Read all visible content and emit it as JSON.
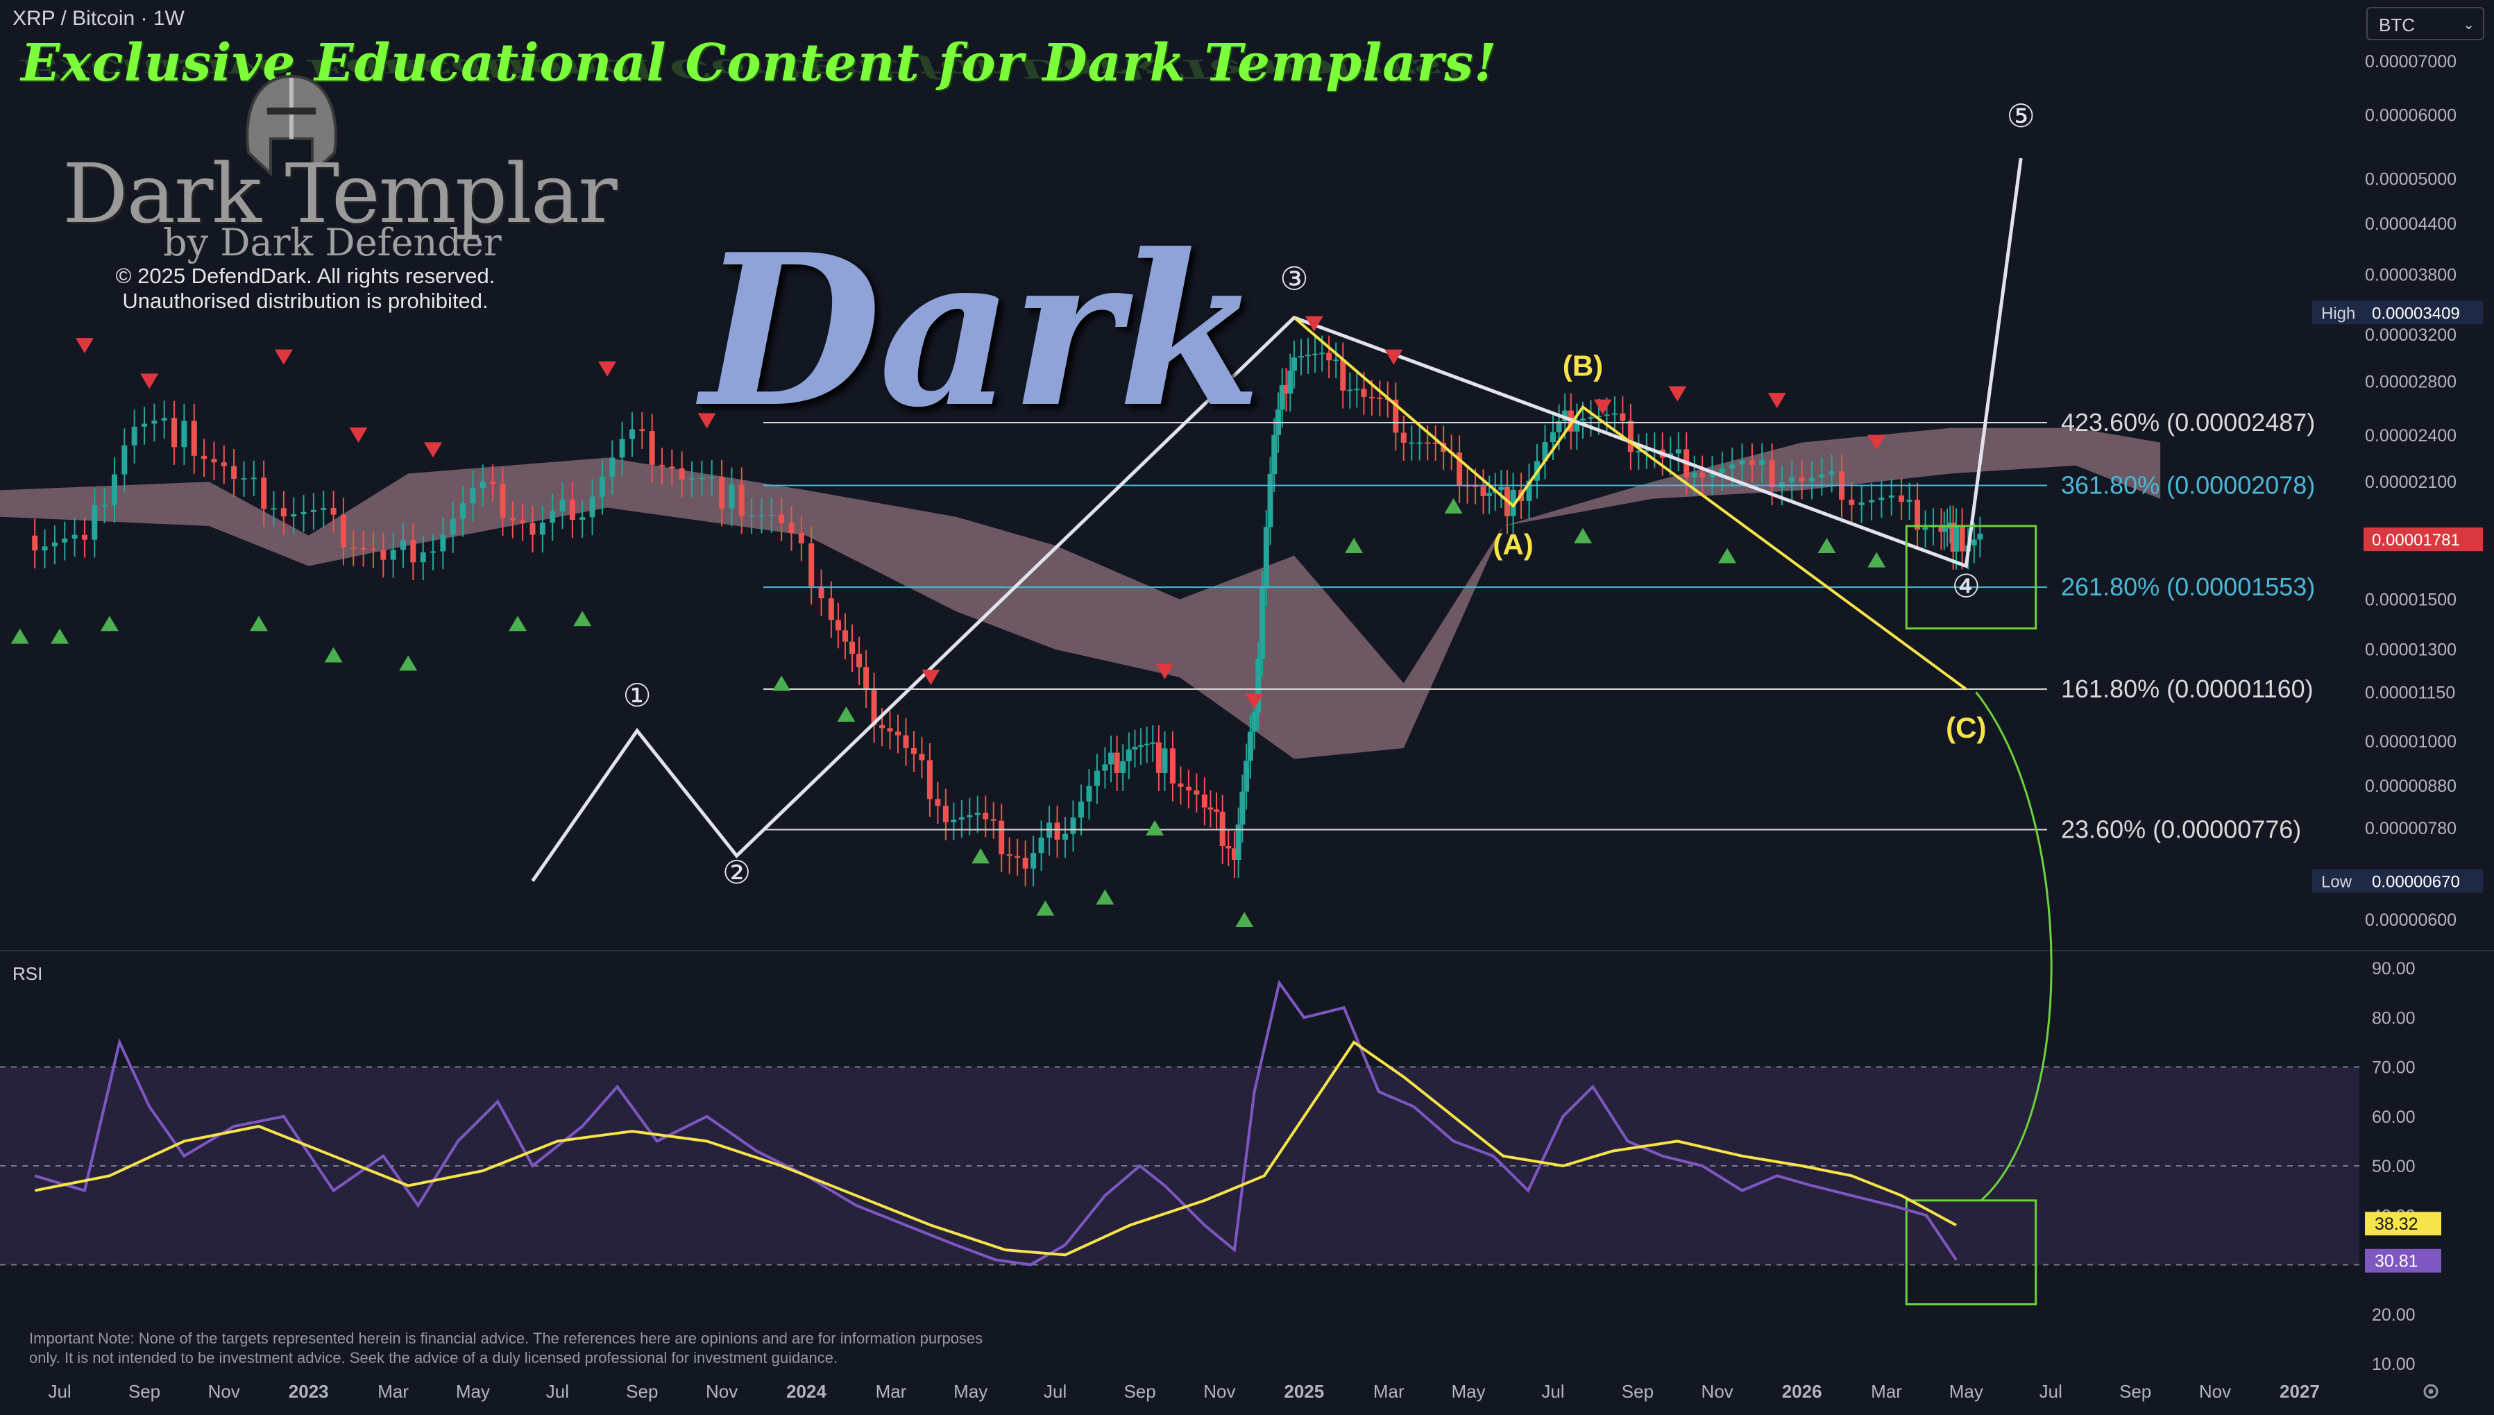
{
  "header": {
    "symbol_title": "XRP / Bitcoin · 1W",
    "currency": "BTC"
  },
  "overlay": {
    "promo_text": "Exclusive Educational Content for Dark Templars!",
    "brand_name": "Dark Templar",
    "brand_sub": "by Dark Defender",
    "copyright_line1": "© 2025 DefendDark. All rights reserved.",
    "copyright_line2": "Unauthorised distribution is prohibited.",
    "watermark": "Dark",
    "disclaimer": "Important Note: None of the targets represented herein is financial advice. The references here are opinions and are for information purposes only. It is not intended to be investment advice. Seek the advice of a duly licensed professional for investment guidance."
  },
  "colors": {
    "background": "#131722",
    "candle_up": "#26a69a",
    "candle_down": "#ef5350",
    "wave_line": "#e0e3eb",
    "correction_line": "#f7e34a",
    "fib_cyan": "#4bb8d6",
    "rsi_line": "#7e57c2",
    "rsi_ma": "#f7e34a",
    "target_box": "#6bd23a",
    "cloud": "#b88e9a",
    "brand_green": "#7cff3a"
  },
  "icons": {
    "settings": "gear-icon",
    "currency_dropdown": "chevron-down-icon",
    "logo": "helmet-icon"
  },
  "chart_data": [
    {
      "type": "candlestick",
      "title": "XRP / Bitcoin · 1W",
      "x_axis_ticks": [
        "Jul",
        "Sep",
        "Nov",
        "2023",
        "Mar",
        "May",
        "Jul",
        "Sep",
        "Nov",
        "2024",
        "Mar",
        "May",
        "Jul",
        "Sep",
        "Nov",
        "2025",
        "Mar",
        "May",
        "Jul",
        "Sep",
        "Nov",
        "2026",
        "Mar",
        "May",
        "Jul",
        "Sep",
        "Nov",
        "2027"
      ],
      "y_axis_ticks": [
        "0.00007000",
        "0.00006000",
        "0.00005000",
        "0.00004400",
        "0.00003800",
        "0.00003200",
        "0.00002800",
        "0.00002400",
        "0.00002100",
        "0.00001800",
        "0.00001500",
        "0.00001300",
        "0.00001150",
        "0.00001000",
        "0.00000880",
        "0.00000780",
        "0.00000670",
        "0.00000600"
      ],
      "y_scale": "log",
      "ylim": [
        5.8e-06,
        7.4e-06
      ],
      "price_badges": [
        {
          "label": "High",
          "value": "0.00003409"
        },
        {
          "label": "",
          "value": "0.00001781"
        },
        {
          "label": "Low",
          "value": "0.00000670"
        }
      ],
      "fib_levels": [
        {
          "label": "423.60% (0.00002487)",
          "value": 2.487e-05
        },
        {
          "label": "361.80% (0.00002078)",
          "value": 2.078e-05
        },
        {
          "label": "261.80% (0.00001553)",
          "value": 1.553e-05
        },
        {
          "label": "161.80% (0.00001160)",
          "value": 1.16e-05
        },
        {
          "label": "23.60% (0.00000776)",
          "value": 7.76e-06
        }
      ],
      "wave_labels": [
        "①",
        "②",
        "③",
        "④",
        "⑤"
      ],
      "correction_labels": [
        "(A)",
        "(B)",
        "(C)"
      ],
      "wave_path": [
        {
          "t": 2023.45,
          "v": 6.7e-06
        },
        {
          "t": 2023.66,
          "v": 1.03e-05
        },
        {
          "t": 2023.86,
          "v": 7.2e-06
        },
        {
          "t": 2024.98,
          "v": 3.36e-05
        },
        {
          "t": 2026.33,
          "v": 1.65e-05
        },
        {
          "t": 2026.44,
          "v": 5.3e-05
        }
      ],
      "correction_path": [
        {
          "t": 2024.98,
          "v": 3.36e-05
        },
        {
          "t": 2025.42,
          "v": 1.96e-05
        },
        {
          "t": 2025.56,
          "v": 2.6e-05
        },
        {
          "t": 2026.33,
          "v": 1.16e-05
        }
      ],
      "series": [
        {
          "name": "XRP/BTC close",
          "points": [
            [
              2022.45,
              1.8e-05
            ],
            [
              2022.55,
              1.75e-05
            ],
            [
              2022.65,
              2.5e-05
            ],
            [
              2022.75,
              2.4e-05
            ],
            [
              2022.85,
              2.1e-05
            ],
            [
              2022.95,
              1.95e-05
            ],
            [
              2023.05,
              1.85e-05
            ],
            [
              2023.15,
              1.68e-05
            ],
            [
              2023.25,
              1.78e-05
            ],
            [
              2023.35,
              2.05e-05
            ],
            [
              2023.45,
              1.82e-05
            ],
            [
              2023.55,
              1.98e-05
            ],
            [
              2023.65,
              2.4e-05
            ],
            [
              2023.75,
              2.15e-05
            ],
            [
              2023.85,
              2e-05
            ],
            [
              2023.95,
              1.85e-05
            ],
            [
              2024.05,
              1.45e-05
            ],
            [
              2024.12,
              1.12e-05
            ],
            [
              2024.2,
              9.8e-06
            ],
            [
              2024.28,
              8.2e-06
            ],
            [
              2024.36,
              7.8e-06
            ],
            [
              2024.44,
              7e-06
            ],
            [
              2024.52,
              8e-06
            ],
            [
              2024.6,
              9.2e-06
            ],
            [
              2024.66,
              1e-05
            ],
            [
              2024.72,
              9.4e-06
            ],
            [
              2024.8,
              8.2e-06
            ],
            [
              2024.86,
              7.3e-06
            ],
            [
              2024.9,
              1.05e-05
            ],
            [
              2024.94,
              2.4e-05
            ],
            [
              2024.98,
              3.1e-05
            ],
            [
              2025.05,
              2.9e-05
            ],
            [
              2025.12,
              2.7e-05
            ],
            [
              2025.2,
              2.45e-05
            ],
            [
              2025.28,
              2.25e-05
            ],
            [
              2025.36,
              2.05e-05
            ],
            [
              2025.42,
              1.97e-05
            ],
            [
              2025.5,
              2.4e-05
            ],
            [
              2025.56,
              2.58e-05
            ],
            [
              2025.64,
              2.42e-05
            ],
            [
              2025.72,
              2.25e-05
            ],
            [
              2025.8,
              2.2e-05
            ],
            [
              2025.9,
              2.15e-05
            ],
            [
              2026.0,
              2.12e-05
            ],
            [
              2026.1,
              2.05e-05
            ],
            [
              2026.2,
              1.95e-05
            ],
            [
              2026.28,
              1.85e-05
            ],
            [
              2026.31,
              1.78e-05
            ]
          ]
        }
      ]
    },
    {
      "type": "line",
      "title": "RSI",
      "y_axis_ticks": [
        "90.00",
        "80.00",
        "70.00",
        "60.00",
        "50.00",
        "40.00",
        "30.00",
        "20.00",
        "10.00"
      ],
      "ylim": [
        10,
        90
      ],
      "bands": [
        30,
        50,
        70
      ],
      "value_badges": [
        {
          "value": "38.32"
        },
        {
          "value": "30.81"
        }
      ],
      "series": [
        {
          "name": "RSI",
          "points": [
            [
              2022.45,
              48
            ],
            [
              2022.55,
              45
            ],
            [
              2022.62,
              75
            ],
            [
              2022.68,
              62
            ],
            [
              2022.75,
              52
            ],
            [
              2022.85,
              58
            ],
            [
              2022.95,
              60
            ],
            [
              2023.05,
              45
            ],
            [
              2023.15,
              52
            ],
            [
              2023.22,
              42
            ],
            [
              2023.3,
              55
            ],
            [
              2023.38,
              63
            ],
            [
              2023.45,
              50
            ],
            [
              2023.55,
              58
            ],
            [
              2023.62,
              66
            ],
            [
              2023.7,
              55
            ],
            [
              2023.8,
              60
            ],
            [
              2023.9,
              53
            ],
            [
              2024.0,
              48
            ],
            [
              2024.1,
              42
            ],
            [
              2024.2,
              38
            ],
            [
              2024.3,
              34
            ],
            [
              2024.38,
              31
            ],
            [
              2024.45,
              30
            ],
            [
              2024.52,
              34
            ],
            [
              2024.6,
              44
            ],
            [
              2024.67,
              50
            ],
            [
              2024.72,
              46
            ],
            [
              2024.8,
              38
            ],
            [
              2024.86,
              33
            ],
            [
              2024.9,
              65
            ],
            [
              2024.95,
              87
            ],
            [
              2025.0,
              80
            ],
            [
              2025.08,
              82
            ],
            [
              2025.15,
              65
            ],
            [
              2025.22,
              62
            ],
            [
              2025.3,
              55
            ],
            [
              2025.38,
              52
            ],
            [
              2025.45,
              45
            ],
            [
              2025.52,
              60
            ],
            [
              2025.58,
              66
            ],
            [
              2025.65,
              55
            ],
            [
              2025.72,
              52
            ],
            [
              2025.8,
              50
            ],
            [
              2025.88,
              45
            ],
            [
              2025.95,
              48
            ],
            [
              2026.02,
              46
            ],
            [
              2026.1,
              44
            ],
            [
              2026.18,
              42
            ],
            [
              2026.25,
              40
            ],
            [
              2026.31,
              31
            ]
          ]
        },
        {
          "name": "RSI MA",
          "points": [
            [
              2022.45,
              45
            ],
            [
              2022.6,
              48
            ],
            [
              2022.75,
              55
            ],
            [
              2022.9,
              58
            ],
            [
              2023.05,
              52
            ],
            [
              2023.2,
              46
            ],
            [
              2023.35,
              49
            ],
            [
              2023.5,
              55
            ],
            [
              2023.65,
              57
            ],
            [
              2023.8,
              55
            ],
            [
              2023.95,
              50
            ],
            [
              2024.1,
              44
            ],
            [
              2024.25,
              38
            ],
            [
              2024.4,
              33
            ],
            [
              2024.52,
              32
            ],
            [
              2024.65,
              38
            ],
            [
              2024.8,
              43
            ],
            [
              2024.92,
              48
            ],
            [
              2025.0,
              60
            ],
            [
              2025.1,
              75
            ],
            [
              2025.2,
              68
            ],
            [
              2025.3,
              60
            ],
            [
              2025.4,
              52
            ],
            [
              2025.52,
              50
            ],
            [
              2025.62,
              53
            ],
            [
              2025.75,
              55
            ],
            [
              2025.88,
              52
            ],
            [
              2026.0,
              50
            ],
            [
              2026.1,
              48
            ],
            [
              2026.2,
              44
            ],
            [
              2026.31,
              38
            ]
          ]
        }
      ]
    }
  ]
}
